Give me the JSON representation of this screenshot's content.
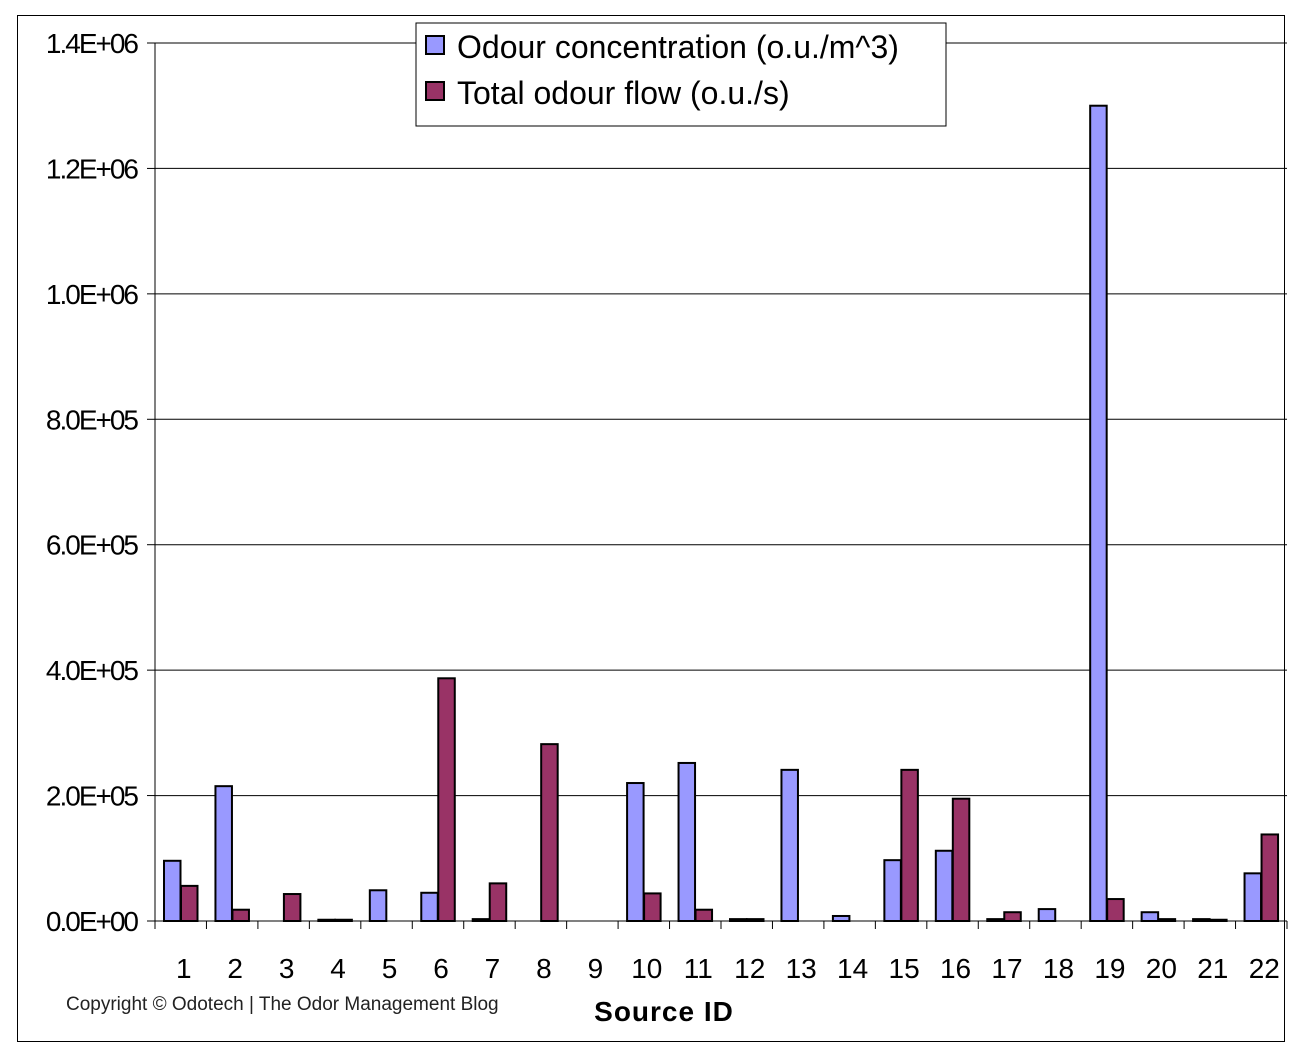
{
  "chart_data": {
    "type": "bar",
    "categories": [
      "1",
      "2",
      "3",
      "4",
      "5",
      "6",
      "7",
      "8",
      "9",
      "10",
      "11",
      "12",
      "13",
      "14",
      "15",
      "16",
      "17",
      "18",
      "19",
      "20",
      "21",
      "22"
    ],
    "series": [
      {
        "name": "Odour concentration (o.u./m^3)",
        "color": "#9999ff",
        "values": [
          96000,
          215000,
          0,
          2000,
          49000,
          45000,
          3000,
          0,
          0,
          220000,
          252000,
          3000,
          241000,
          8000,
          97000,
          112000,
          3000,
          19000,
          1300000,
          14000,
          3000,
          76000
        ]
      },
      {
        "name": "Total odour flow  (o.u./s)",
        "color": "#993366",
        "values": [
          56000,
          18000,
          43000,
          2000,
          0,
          387000,
          60000,
          282000,
          0,
          44000,
          18000,
          3000,
          0,
          0,
          241000,
          195000,
          14000,
          0,
          35000,
          3000,
          2000,
          138000
        ]
      }
    ],
    "y_tick_labels": [
      "0.0E+00",
      "2.0E+05",
      "4.0E+05",
      "6.0E+05",
      "8.0E+05",
      "1.0E+06",
      "1.2E+06",
      "1.4E+06"
    ],
    "xlabel": "Source ID",
    "ylabel": "",
    "ylim": [
      0,
      1400000
    ],
    "grid": true,
    "legend_position": "top-center"
  },
  "copyright": "Copyright © Odotech | The Odor Management Blog"
}
